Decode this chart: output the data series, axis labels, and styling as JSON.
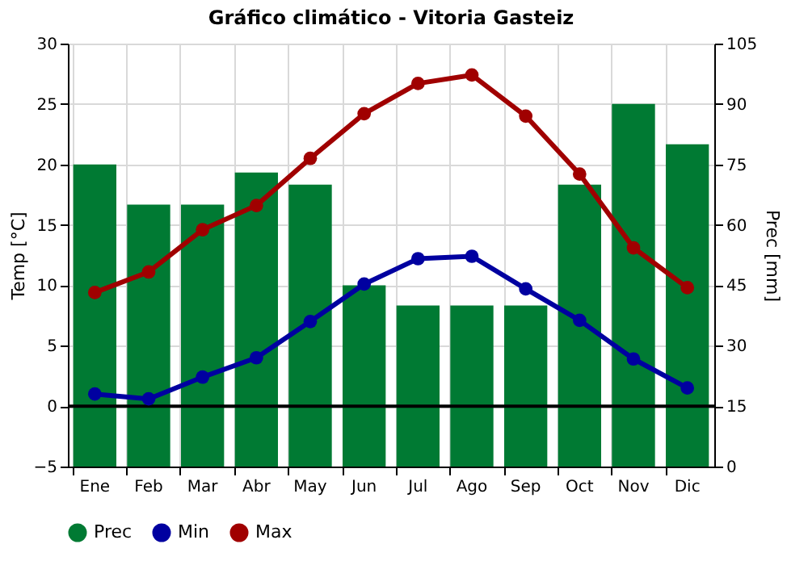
{
  "chart_data": {
    "type": "bar",
    "title": "Gráfico climático - Vitoria Gasteiz",
    "ylabel": "Temp [°C]",
    "y2label": "Prec [mm]",
    "categories": [
      "Ene",
      "Feb",
      "Mar",
      "Abr",
      "May",
      "Jun",
      "Jul",
      "Ago",
      "Sep",
      "Oct",
      "Nov",
      "Dic"
    ],
    "series": [
      {
        "name": "Prec",
        "axis": "y2",
        "color": "#007a33",
        "values": [
          75,
          65,
          65,
          73,
          70,
          45,
          40,
          40,
          40,
          70,
          90,
          80
        ]
      },
      {
        "name": "Min",
        "type": "line",
        "color": "#0000a0",
        "values": [
          1.0,
          0.6,
          2.4,
          4.0,
          7.0,
          10.1,
          12.2,
          12.4,
          9.7,
          7.1,
          3.9,
          1.5
        ]
      },
      {
        "name": "Max",
        "type": "line",
        "color": "#a00000",
        "values": [
          9.4,
          11.1,
          14.6,
          16.6,
          20.5,
          24.2,
          26.7,
          27.4,
          24.0,
          19.2,
          13.1,
          9.8
        ]
      }
    ],
    "ylim": [
      -5,
      30
    ],
    "yticks": [
      -5,
      0,
      5,
      10,
      15,
      20,
      25,
      30
    ],
    "y2lim": [
      0,
      105
    ],
    "y2ticks": [
      0,
      15,
      30,
      45,
      60,
      75,
      90,
      105
    ],
    "ref_lines": [
      {
        "axis": "y",
        "value": 0,
        "color": "#000000"
      }
    ],
    "grid": true,
    "legend": "bottom",
    "marker": "circle",
    "line_style": "solid"
  }
}
